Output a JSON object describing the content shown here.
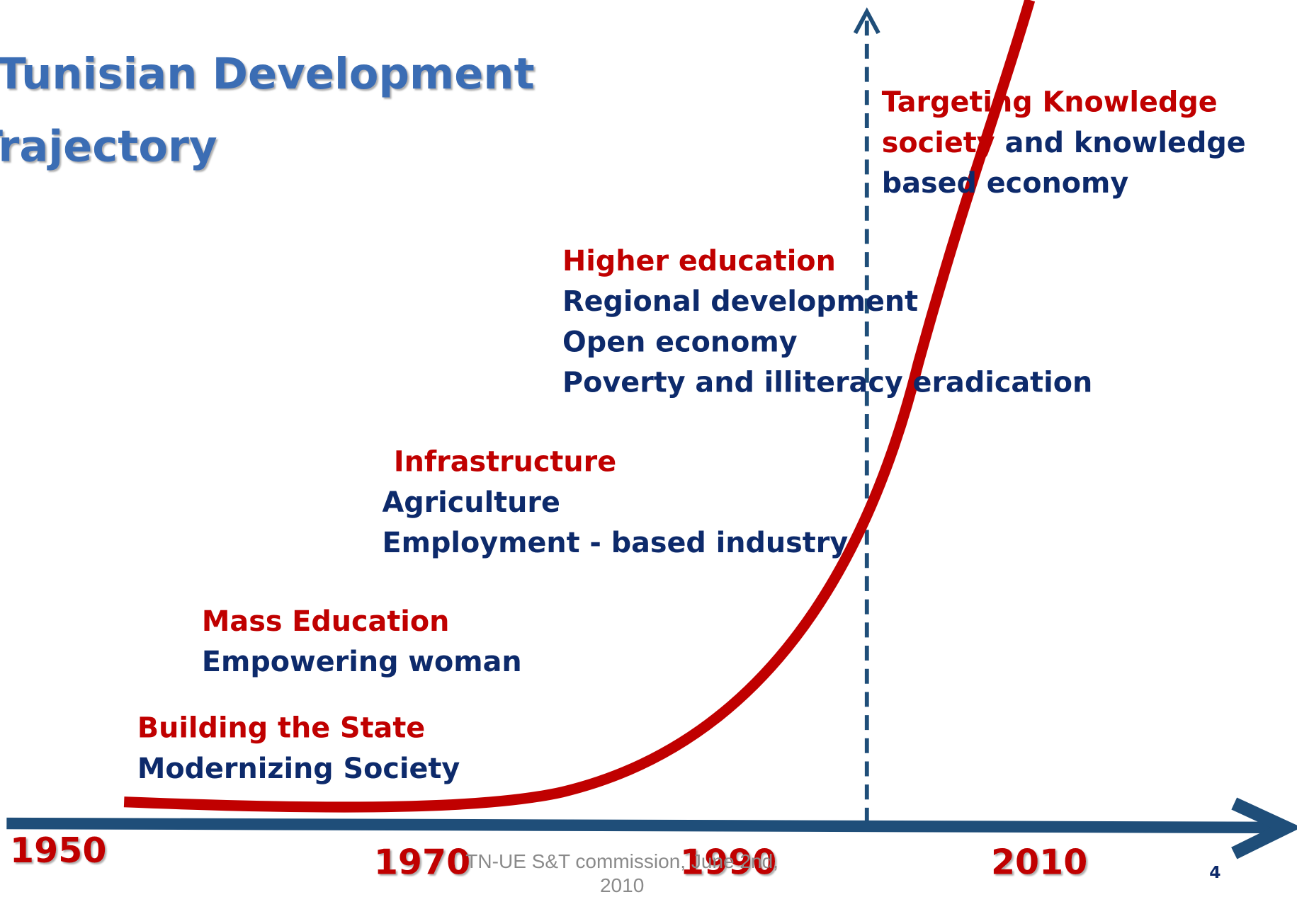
{
  "title": [
    "Tunisian Development",
    "Trajectory"
  ],
  "stages": [
    {
      "heading": [
        "Building the State"
      ],
      "items": [
        "Modernizing Society"
      ]
    },
    {
      "heading": [
        "Mass Education"
      ],
      "items": [
        "Empowering woman"
      ]
    },
    {
      "heading": [
        "Infrastructure"
      ],
      "items": [
        "Agriculture",
        "Employment - based industry"
      ]
    },
    {
      "heading": [
        "Higher education"
      ],
      "items": [
        "Regional development",
        "Open economy",
        "Poverty and illiteracy eradication"
      ]
    },
    {
      "heading": [
        "Targeting Knowledge",
        "society"
      ],
      "items": [
        "and  knowledge",
        "based economy"
      ]
    }
  ],
  "years": [
    "1950",
    "1970",
    "1990",
    "2010"
  ],
  "footer": [
    "TN-UE  S&T commission, June 2nd,",
    "2010"
  ],
  "page_number": "4"
}
